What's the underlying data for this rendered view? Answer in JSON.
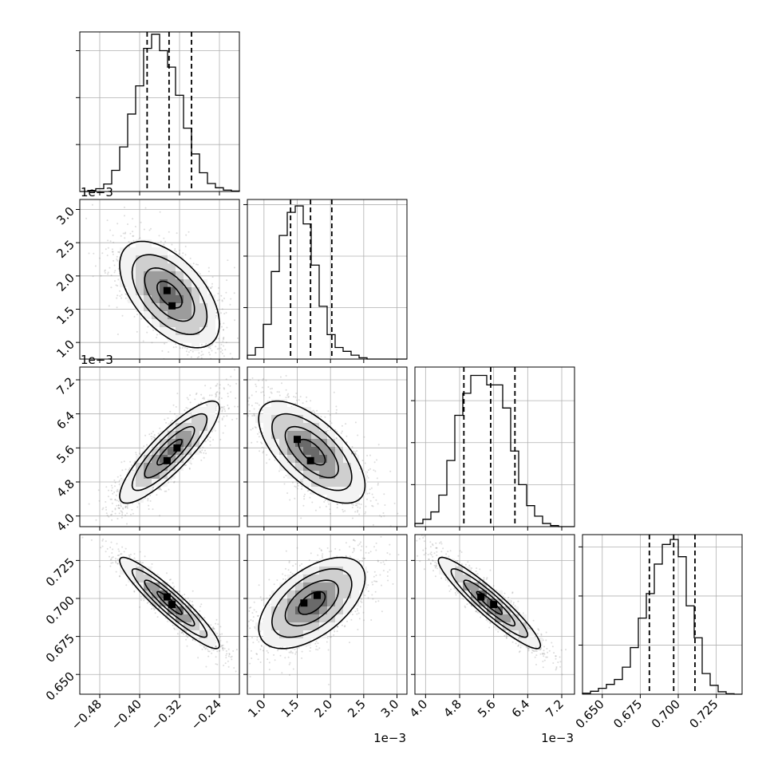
{
  "chart_data": {
    "type": "corner",
    "parameters": [
      {
        "id": "p0",
        "range": [
          -0.52,
          -0.2
        ],
        "ticks": [
          -0.48,
          -0.4,
          -0.32,
          -0.24
        ],
        "tick_labels": [
          "−0.48",
          "−0.40",
          "−0.32",
          "−0.24"
        ],
        "offset_label": "",
        "hist_ticks": [
          10,
          20,
          30
        ]
      },
      {
        "id": "p1",
        "range": [
          0.75,
          3.15
        ],
        "ticks": [
          1.0,
          1.5,
          2.0,
          2.5,
          3.0
        ],
        "tick_labels": [
          "1.0",
          "1.5",
          "2.0",
          "2.5",
          "3.0"
        ],
        "offset_label": "1e−3",
        "hist_ticks": [
          2,
          4,
          6
        ]
      },
      {
        "id": "p2",
        "range": [
          3.75,
          7.5
        ],
        "ticks": [
          4.0,
          4.8,
          5.6,
          6.4,
          7.2
        ],
        "tick_labels": [
          "4.0",
          "4.8",
          "5.6",
          "6.4",
          "7.2"
        ],
        "offset_label": "1e−3",
        "hist_ticks": [
          4,
          8,
          12
        ]
      },
      {
        "id": "p3",
        "range": [
          0.637,
          0.742
        ],
        "ticks": [
          0.65,
          0.675,
          0.7,
          0.725
        ],
        "tick_labels": [
          "0.650",
          "0.675",
          "0.700",
          "0.725"
        ],
        "offset_label": "",
        "hist_ticks": [
          10,
          20,
          30
        ]
      }
    ],
    "histograms": [
      {
        "param": 0,
        "bin_start": -0.52,
        "bin_width": 0.016,
        "counts": [
          0.0,
          0.2,
          0.6,
          1.6,
          4.5,
          9.5,
          16.5,
          22.5,
          30.5,
          33.5,
          30.0,
          26.5,
          20.5,
          13.5,
          8.0,
          4.0,
          1.7,
          0.8,
          0.3,
          0.1
        ],
        "ymax": 34,
        "quantiles": [
          -0.385,
          -0.341,
          -0.296
        ]
      },
      {
        "param": 1,
        "bin_start": 0.75,
        "bin_width": 0.12,
        "counts": [
          0.15,
          0.45,
          1.35,
          3.4,
          4.8,
          5.7,
          5.95,
          5.25,
          3.65,
          2.05,
          0.95,
          0.45,
          0.3,
          0.15,
          0.05,
          0.0,
          0.0,
          0.0,
          0.0,
          0.0
        ],
        "ymax": 6.2,
        "quantiles": [
          1.4,
          1.7,
          2.02
        ]
      },
      {
        "param": 2,
        "bin_start": 3.75,
        "bin_width": 0.1875,
        "counts": [
          0.3,
          0.7,
          1.4,
          3.0,
          6.3,
          10.6,
          12.7,
          14.4,
          14.4,
          13.5,
          13.5,
          11.3,
          7.2,
          4.0,
          2.0,
          1.0,
          0.3,
          0.1,
          0.0,
          0.0
        ],
        "ymax": 15.2,
        "quantiles": [
          4.9,
          5.53,
          6.1
        ]
      },
      {
        "param": 3,
        "bin_start": 0.637,
        "bin_width": 0.00525,
        "counts": [
          0.2,
          0.6,
          1.2,
          2.0,
          3.0,
          5.5,
          9.5,
          15.5,
          20.5,
          26.5,
          30.5,
          31.5,
          28.0,
          18.0,
          11.5,
          4.2,
          1.8,
          0.5,
          0.1,
          0.0
        ],
        "ymax": 32.5,
        "quantiles": [
          0.681,
          0.697,
          0.711
        ]
      }
    ],
    "pairs": [
      {
        "x": 0,
        "y": 1,
        "mean": [
          -0.34,
          1.72
        ],
        "sd": [
          0.05,
          0.4
        ],
        "rho": -0.55,
        "peaks": [
          [
            -0.345,
            1.78
          ],
          [
            -0.335,
            1.55
          ]
        ]
      },
      {
        "x": 0,
        "y": 2,
        "mean": [
          -0.34,
          5.5
        ],
        "sd": [
          0.05,
          0.6
        ],
        "rho": 0.86,
        "peaks": [
          [
            -0.345,
            5.3
          ],
          [
            -0.325,
            5.6
          ]
        ]
      },
      {
        "x": 1,
        "y": 2,
        "mean": [
          1.72,
          5.5
        ],
        "sd": [
          0.4,
          0.6
        ],
        "rho": -0.65,
        "peaks": [
          [
            1.5,
            5.8
          ],
          [
            1.7,
            5.3
          ]
        ]
      },
      {
        "x": 0,
        "y": 3,
        "mean": [
          -0.34,
          0.697
        ],
        "sd": [
          0.05,
          0.015
        ],
        "rho": -0.93,
        "peaks": [
          [
            -0.345,
            0.701
          ],
          [
            -0.335,
            0.696
          ]
        ]
      },
      {
        "x": 1,
        "y": 3,
        "mean": [
          1.72,
          0.697
        ],
        "sd": [
          0.4,
          0.015
        ],
        "rho": 0.55,
        "peaks": [
          [
            1.6,
            0.697
          ],
          [
            1.8,
            0.702
          ]
        ]
      },
      {
        "x": 2,
        "y": 3,
        "mean": [
          5.5,
          0.697
        ],
        "sd": [
          0.6,
          0.015
        ],
        "rho": -0.93,
        "peaks": [
          [
            5.3,
            0.701
          ],
          [
            5.6,
            0.696
          ]
        ]
      }
    ],
    "contour_levels_sigma": [
      0.5,
      1.0,
      1.5,
      2.0
    ],
    "grid": true,
    "colors": {
      "line": "#000000",
      "grid": "#b0b0b0",
      "points": "#808080"
    }
  }
}
